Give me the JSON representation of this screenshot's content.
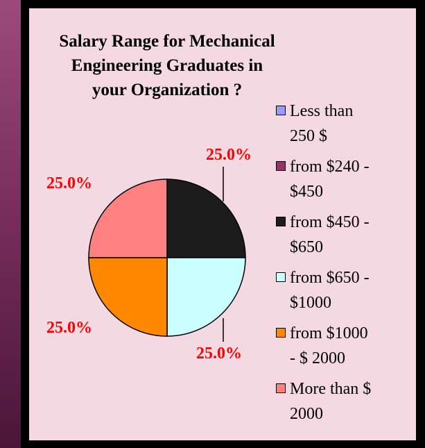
{
  "chart_data": {
    "type": "pie",
    "title": "Salary Range for Mechanical Engineering Graduates in your Organization ?",
    "categories": [
      "Less than 250 $",
      "from $240 - $450",
      "from  $450 - $650",
      "from $650 - $1000",
      "from $1000 - $ 2000",
      "More than $ 2000"
    ],
    "values": [
      0,
      0,
      25,
      25,
      25,
      25
    ],
    "value_labels": [
      null,
      null,
      "25.0%",
      "25.0%",
      "25.0%",
      "25.0%"
    ],
    "colors": [
      "#9999ff",
      "#993366",
      "#1c1c1c",
      "#ccffff",
      "#ff8800",
      "#ff8080"
    ],
    "legend": "right"
  }
}
